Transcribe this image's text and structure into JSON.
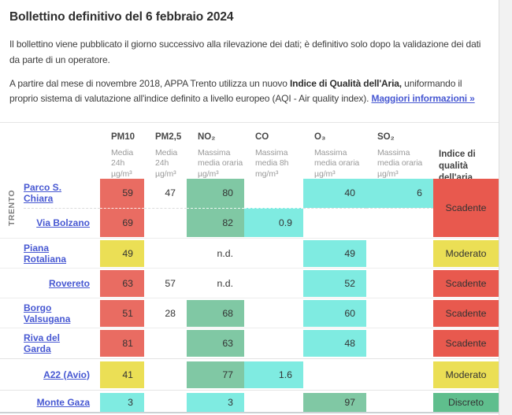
{
  "header": {
    "title": "Bollettino definitivo del 6 febbraio 2024",
    "paragraph1": "Il bollettino viene pubblicato il giorno successivo alla rilevazione dei dati; è definitivo solo dopo la validazione dei dati da parte di un operatore.",
    "paragraph2": {
      "text_before": "A partire dal mese di novembre 2018, APPA Trento utilizza un nuovo ",
      "bold": "Indice di Qualità dell'Aria,",
      "text_after": " uniformando il proprio sistema di valutazione all'indice definito a livello europeo (AQI - Air quality index). ",
      "link": "Maggiori informazioni »"
    }
  },
  "palette": {
    "good": "#7febe1",
    "fair": "#80c8a4",
    "moderate": "#ebdf55",
    "poor": "#e96c62",
    "index_poor": "#e8594e",
    "index_moderate": "#ebdf55",
    "index_fair": "#5fbe8d",
    "link": "#4758d2"
  },
  "table": {
    "columns": {
      "pm10": {
        "name": "PM10",
        "sub1": "Media",
        "sub2": "24h",
        "unit": "µg/m³"
      },
      "pm25": {
        "name": "PM2,5",
        "sub1": "Media",
        "sub2": "24h",
        "unit": "µg/m³"
      },
      "no2": {
        "name": "NO₂",
        "sub1": "Massima",
        "sub2": "media oraria",
        "unit": "µg/m³"
      },
      "co": {
        "name": "CO",
        "sub1": "Massima",
        "sub2": "media 8h",
        "unit": "mg/m³"
      },
      "o3": {
        "name": "O₃",
        "sub1": "Massima",
        "sub2": "media oraria",
        "unit": "µg/m³"
      },
      "so2": {
        "name": "SO₂",
        "sub1": "Massima",
        "sub2": "media oraria",
        "unit": "µg/m³"
      }
    },
    "index_header": {
      "line1": "Indice di",
      "line2": "qualità",
      "line3": "dell'aria"
    },
    "groups": [
      {
        "label": "TRENTO",
        "index": "Scadente",
        "rows": [
          {
            "station": "Parco S. Chiara",
            "pm10": "59",
            "pm25": "47",
            "no2": "80",
            "co": "",
            "o3": "40",
            "so2": "6"
          },
          {
            "station": "Via Bolzano",
            "pm10": "69",
            "pm25": "",
            "no2": "82",
            "co": "0.9",
            "o3": "",
            "so2": ""
          }
        ]
      },
      {
        "label": "",
        "index": "Moderato",
        "rows": [
          {
            "station": "Piana Rotaliana",
            "pm10": "49",
            "pm25": "",
            "no2": "n.d.",
            "co": "",
            "o3": "49",
            "so2": ""
          }
        ]
      },
      {
        "label": "",
        "index": "Scadente",
        "rows": [
          {
            "station": "Rovereto",
            "pm10": "63",
            "pm25": "57",
            "no2": "n.d.",
            "co": "",
            "o3": "52",
            "so2": ""
          }
        ]
      },
      {
        "label": "",
        "index": "Scadente",
        "rows": [
          {
            "station": "Borgo Valsugana",
            "pm10": "51",
            "pm25": "28",
            "no2": "68",
            "co": "",
            "o3": "60",
            "so2": ""
          }
        ]
      },
      {
        "label": "",
        "index": "Scadente",
        "rows": [
          {
            "station": "Riva del Garda",
            "pm10": "81",
            "pm25": "",
            "no2": "63",
            "co": "",
            "o3": "48",
            "so2": ""
          }
        ]
      },
      {
        "label": "",
        "index": "Moderato",
        "rows": [
          {
            "station": "A22 (Avio)",
            "pm10": "41",
            "pm25": "",
            "no2": "77",
            "co": "1.6",
            "o3": "",
            "so2": ""
          }
        ]
      },
      {
        "label": "",
        "index": "Discreto",
        "rows": [
          {
            "station": "Monte Gaza",
            "pm10": "3",
            "pm25": "",
            "no2": "3",
            "co": "",
            "o3": "97",
            "so2": ""
          }
        ]
      }
    ]
  }
}
